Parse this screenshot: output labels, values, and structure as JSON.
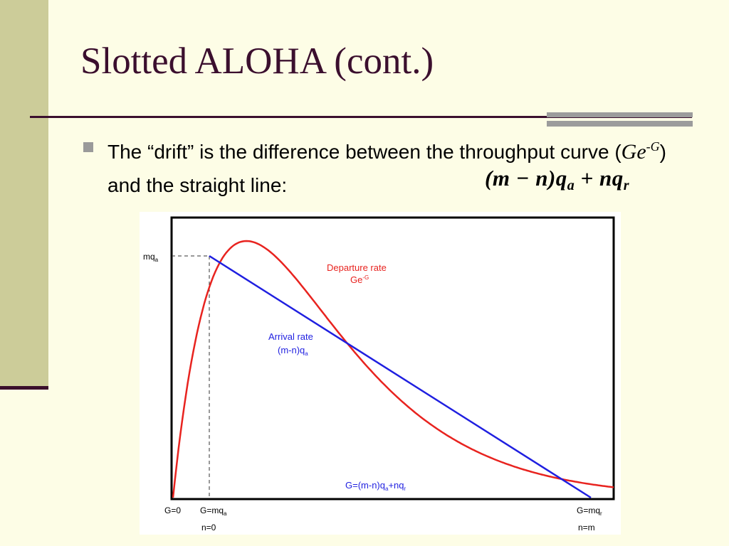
{
  "slide": {
    "title": "Slotted ALOHA (cont.)",
    "bullet": {
      "before": "The “drift” is the difference between the throughput curve (",
      "expr_base": "Ge",
      "expr_sup": "-G",
      "after": ") and the straight line:"
    },
    "formula": {
      "part1": "(m − n)q",
      "sub1": "a",
      "part2": " + nq",
      "sub2": "r"
    }
  },
  "colors": {
    "accent": "#3b0f2e",
    "departure": "#e8231f",
    "arrival": "#1f1fe0",
    "band": "#cccc99"
  },
  "chart_data": {
    "type": "line",
    "title": "",
    "series": [
      {
        "name": "Departure rate",
        "name_extra": "Ge",
        "name_extra_sup": "-G",
        "color": "#e8231f",
        "formula": "G*exp(-G)",
        "g_range": [
          0,
          6
        ]
      },
      {
        "name": "Arrival rate",
        "name_extra": "(m-n)q",
        "name_extra_sub": "a",
        "color": "#1f1fe0"
      }
    ],
    "annotations": {
      "y_label_main": "mq",
      "y_label_sub": "a",
      "line_eq_main": "G=(m-n)q",
      "line_eq_sub": "a",
      "line_eq_tail": "+nq",
      "line_eq_tail_sub": "r"
    },
    "x_ticks": [
      {
        "line1_main": "G=0",
        "line1_sub": "",
        "line2": ""
      },
      {
        "line1_main": "G=mq",
        "line1_sub": "a",
        "line2": "n=0"
      },
      {
        "line1_main": "G=mq",
        "line1_sub": "r",
        "line2": "n=m"
      }
    ],
    "grid": false
  }
}
